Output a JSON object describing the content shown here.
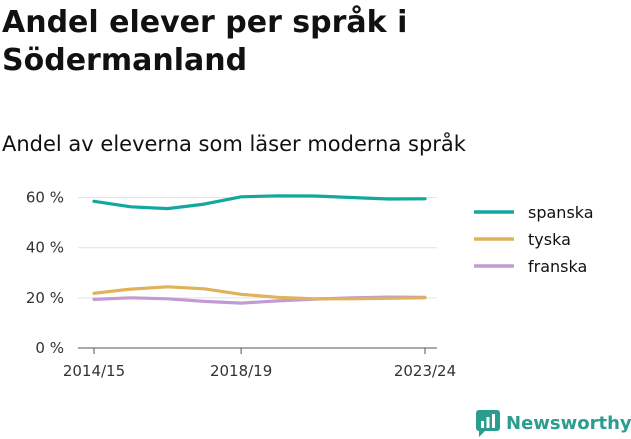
{
  "header": {
    "title": "Andel elever per språk i Södermanland",
    "subtitle": "Andel av eleverna som läser moderna språk"
  },
  "chart_data": {
    "type": "line",
    "x": [
      "2014/15",
      "2015/16",
      "2016/17",
      "2017/18",
      "2018/19",
      "2019/20",
      "2020/21",
      "2021/22",
      "2022/23",
      "2023/24"
    ],
    "x_tick_labels": [
      "2014/15",
      "2018/19",
      "2023/24"
    ],
    "y_ticks": [
      0,
      20,
      40,
      60
    ],
    "y_tick_labels": [
      "0 %",
      "20 %",
      "40 %",
      "60 %"
    ],
    "ylim": [
      0,
      65
    ],
    "grid": "horizontal",
    "legend_position": "right",
    "series": [
      {
        "name": "spanska",
        "color": "#13a89e",
        "values": [
          58.5,
          56.3,
          55.6,
          57.4,
          60.3,
          60.7,
          60.6,
          60.0,
          59.4,
          59.5
        ]
      },
      {
        "name": "tyska",
        "color": "#e0b25a",
        "values": [
          21.8,
          23.5,
          24.4,
          23.6,
          21.4,
          20.2,
          19.6,
          19.6,
          19.8,
          20.0
        ]
      },
      {
        "name": "franska",
        "color": "#c39bd3",
        "values": [
          19.4,
          20.0,
          19.6,
          18.6,
          17.9,
          18.8,
          19.5,
          20.0,
          20.3,
          20.2
        ]
      }
    ]
  },
  "brand": {
    "name": "Newsworthy",
    "color": "#2a9d8f"
  }
}
